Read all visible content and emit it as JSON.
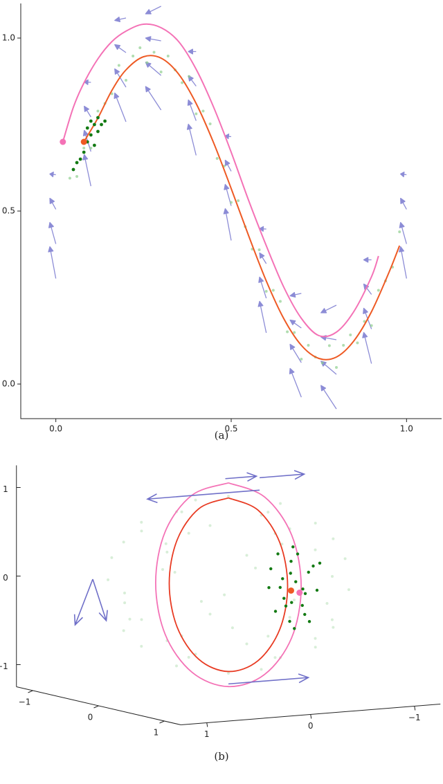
{
  "chart_data": [
    {
      "type": "quiver",
      "caption": "(a)",
      "xlim": [
        -0.1,
        1.1
      ],
      "ylim": [
        -0.1,
        1.1
      ],
      "xticks": [
        {
          "value": 0,
          "label": "0.0"
        },
        {
          "value": 0.5,
          "label": "0.5"
        },
        {
          "value": 1,
          "label": "1.0"
        }
      ],
      "yticks": [
        {
          "value": 0,
          "label": "0.0"
        },
        {
          "value": 0.5,
          "label": "0.5"
        },
        {
          "value": 1,
          "label": "1.0"
        }
      ],
      "quiver": {
        "color": "#8c8cd6",
        "x": [
          0,
          0,
          0,
          0,
          0.1,
          0.1,
          0.1,
          0.1,
          0.2,
          0.2,
          0.2,
          0.2,
          0.3,
          0.3,
          0.3,
          0.3,
          0.4,
          0.4,
          0.4,
          0.4,
          0.5,
          0.5,
          0.5,
          0.5,
          0.6,
          0.6,
          0.6,
          0.6,
          0.7,
          0.7,
          0.7,
          0.7,
          0.8,
          0.8,
          0.8,
          0.8,
          0.9,
          0.9,
          0.9,
          0.9,
          1,
          1,
          1,
          1
        ],
        "y": [
          0.305,
          0.405,
          0.505,
          0.605,
          0.572,
          0.672,
          0.772,
          0.872,
          0.758,
          0.858,
          0.958,
          1.058,
          0.792,
          0.892,
          0.992,
          1.092,
          0.661,
          0.761,
          0.861,
          0.961,
          0.415,
          0.515,
          0.615,
          0.715,
          0.148,
          0.248,
          0.348,
          0.448,
          -0.038,
          0.062,
          0.162,
          0.262,
          -0.072,
          0.028,
          0.128,
          0.228,
          0.059,
          0.159,
          0.259,
          0.359,
          0.305,
          0.405,
          0.505,
          0.605
        ],
        "u": [
          -0.017,
          -0.017,
          -0.017,
          -0.017,
          -0.019,
          -0.019,
          -0.019,
          -0.019,
          -0.032,
          -0.032,
          -0.032,
          -0.032,
          -0.044,
          -0.044,
          -0.044,
          -0.044,
          -0.022,
          -0.022,
          -0.022,
          -0.022,
          -0.017,
          -0.017,
          -0.017,
          -0.017,
          -0.019,
          -0.019,
          -0.019,
          -0.019,
          -0.032,
          -0.032,
          -0.032,
          -0.032,
          -0.044,
          -0.044,
          -0.044,
          -0.044,
          -0.022,
          -0.022,
          -0.022,
          -0.022,
          -0.017,
          -0.017,
          -0.017,
          -0.017
        ],
        "v": [
          0.092,
          0.062,
          0.032,
          0.002,
          0.091,
          0.061,
          0.031,
          0.001,
          0.083,
          0.053,
          0.023,
          -0.007,
          0.068,
          0.038,
          0.008,
          -0.022,
          0.09,
          0.06,
          0.03,
          0,
          0.092,
          0.062,
          0.032,
          0.002,
          0.091,
          0.061,
          0.031,
          0.001,
          0.083,
          0.053,
          0.023,
          -0.007,
          0.068,
          0.038,
          0.008,
          -0.022,
          0.09,
          0.06,
          0.03,
          0,
          0.092,
          0.062,
          0.032,
          0.002
        ]
      },
      "scatter": [
        {
          "color": "#8fcf8f",
          "alpha": 0.7,
          "size": 2,
          "x": [
            0.04,
            0.06,
            0.08,
            0.1,
            0.12,
            0.14,
            0.16,
            0.18,
            0.2,
            0.22,
            0.24,
            0.26,
            0.28,
            0.3,
            0.32,
            0.34,
            0.36,
            0.38,
            0.4,
            0.42,
            0.44,
            0.46,
            0.48,
            0.5,
            0.52,
            0.54,
            0.56,
            0.58,
            0.6,
            0.62,
            0.64,
            0.66,
            0.68,
            0.7,
            0.72,
            0.74,
            0.76,
            0.78,
            0.8,
            0.82,
            0.84,
            0.86,
            0.88,
            0.9,
            0.92,
            0.94,
            0.96,
            0.98
          ],
          "y": [
            0.595,
            0.6,
            0.682,
            0.682,
            0.789,
            0.811,
            0.839,
            0.921,
            0.878,
            0.948,
            0.972,
            0.929,
            0.959,
            0.902,
            0.948,
            0.908,
            0.871,
            0.889,
            0.781,
            0.789,
            0.752,
            0.652,
            0.63,
            0.525,
            0.53,
            0.455,
            0.39,
            0.388,
            0.268,
            0.271,
            0.239,
            0.151,
            0.149,
            0.072,
            0.112,
            0.078,
            0.061,
            0.111,
            0.048,
            0.112,
            0.142,
            0.119,
            0.181,
            0.169,
            0.271,
            0.298,
            0.338,
            0.44
          ]
        },
        {
          "color": "#137a13",
          "alpha": 1,
          "size": 2.4,
          "x": [
            0.05,
            0.06,
            0.07,
            0.08,
            0.09,
            0.09,
            0.1,
            0.1,
            0.11,
            0.11,
            0.12,
            0.12,
            0.13,
            0.14
          ],
          "y": [
            0.62,
            0.64,
            0.65,
            0.67,
            0.7,
            0.74,
            0.72,
            0.76,
            0.69,
            0.75,
            0.73,
            0.77,
            0.75,
            0.76
          ]
        }
      ],
      "curves": [
        {
          "color": "#f472b6",
          "x": [
            0.02,
            0.05,
            0.08,
            0.12,
            0.16,
            0.2,
            0.25,
            0.3,
            0.35,
            0.4,
            0.45,
            0.5,
            0.55,
            0.6,
            0.65,
            0.7,
            0.75,
            0.8,
            0.85,
            0.9,
            0.92
          ],
          "y": [
            0.7,
            0.8,
            0.87,
            0.94,
            0.99,
            1.02,
            1.04,
            1.03,
            0.99,
            0.91,
            0.8,
            0.67,
            0.53,
            0.4,
            0.28,
            0.19,
            0.14,
            0.15,
            0.21,
            0.31,
            0.37
          ]
        },
        {
          "color": "#ee5a24",
          "x": [
            0.08,
            0.12,
            0.16,
            0.2,
            0.25,
            0.3,
            0.35,
            0.4,
            0.45,
            0.5,
            0.55,
            0.6,
            0.65,
            0.7,
            0.75,
            0.8,
            0.85,
            0.9,
            0.95,
            0.98
          ],
          "y": [
            0.7,
            0.769,
            0.849,
            0.908,
            0.946,
            0.942,
            0.896,
            0.811,
            0.697,
            0.565,
            0.428,
            0.298,
            0.189,
            0.112,
            0.074,
            0.078,
            0.125,
            0.209,
            0.323,
            0.4
          ]
        }
      ],
      "markers": [
        {
          "color": "#f472b6",
          "x": [
            0.02
          ],
          "y": [
            0.7
          ]
        },
        {
          "color": "#ee5a24",
          "x": [
            0.08
          ],
          "y": [
            0.7
          ]
        }
      ]
    },
    {
      "type": "scatter3d",
      "caption": "(b)",
      "xlim": [
        -1.25,
        1.25
      ],
      "ylim": [
        -1.25,
        1.25
      ],
      "zlim": [
        -1.25,
        1.25
      ],
      "xticks": [
        {
          "value": -1,
          "label": "−1"
        },
        0,
        1
      ],
      "yticks": [
        1,
        0,
        {
          "value": -1,
          "label": "−1"
        }
      ],
      "zticks": [
        1,
        0,
        {
          "value": -1,
          "label": "−1"
        }
      ],
      "scatter": [
        {
          "color": "#8fcf8f",
          "alpha": 0.35,
          "size": 2,
          "x": [
            1,
            0.71,
            0,
            -0.71,
            -1,
            -0.71,
            0,
            0.71,
            0.8,
            0.33,
            -0.33,
            -0.8,
            -0.8,
            -0.33,
            0.33,
            0.8,
            0.8,
            0.33,
            -0.33,
            -0.8,
            -0.8,
            -0.33,
            0.33,
            0.8,
            0.5,
            0,
            -0.5,
            0,
            0.5,
            0,
            -0.5,
            0,
            0.95,
            0.48,
            -0.48,
            -0.95,
            -0.48,
            0.48,
            0.82,
            0,
            -0.82,
            -0.82,
            0,
            0.82,
            0,
            0,
            0.71,
            0.36,
            -0.36,
            -0.71,
            -0.36,
            0.36,
            0.71,
            0.36,
            -0.36,
            -0.71,
            -0.36,
            0.36
          ],
          "y": [
            0,
            0.71,
            1,
            0.71,
            0,
            -0.71,
            -1,
            -0.71,
            0.33,
            0.8,
            0.8,
            0.33,
            -0.33,
            -0.8,
            -0.8,
            -0.33,
            0.33,
            0.8,
            0.8,
            0.33,
            -0.33,
            -0.8,
            -0.8,
            -0.33,
            0,
            0.5,
            0,
            -0.5,
            0,
            0.5,
            0,
            -0.5,
            0,
            0.82,
            0.82,
            0,
            -0.82,
            -0.82,
            0.48,
            0.95,
            0.48,
            -0.48,
            -0.95,
            -0.48,
            0,
            0,
            0,
            0.61,
            0.61,
            0,
            -0.61,
            -0.61,
            0,
            0.61,
            0.61,
            0,
            -0.61,
            -0.61
          ],
          "z": [
            0,
            0,
            0,
            0,
            0,
            0,
            0,
            0,
            0.5,
            0.5,
            0.5,
            0.5,
            0.5,
            0.5,
            0.5,
            0.5,
            -0.5,
            -0.5,
            -0.5,
            -0.5,
            -0.5,
            -0.5,
            -0.5,
            -0.5,
            0.87,
            0.87,
            0.87,
            0.87,
            -0.87,
            -0.87,
            -0.87,
            -0.87,
            0.3,
            0.3,
            0.3,
            0.3,
            0.3,
            0.3,
            -0.3,
            -0.3,
            -0.3,
            -0.3,
            -0.3,
            -0.3,
            1,
            -1,
            0.7,
            0.7,
            0.7,
            0.7,
            0.7,
            0.7,
            -0.7,
            -0.7,
            -0.7,
            -0.7,
            -0.7,
            -0.7
          ]
        },
        {
          "color": "#137a13",
          "alpha": 1,
          "size": 2.2,
          "x": [
            0.4,
            0.55,
            0.25,
            0.5,
            0.3,
            0.6,
            0.35,
            0.45,
            0.2,
            0.55,
            0.4,
            0.3,
            0.5,
            0.65,
            0.25,
            0.45,
            0.35,
            0.6,
            0.4,
            0.5,
            0.3,
            0.55,
            0.45,
            0.35,
            0.4
          ],
          "y": [
            -0.35,
            -0.3,
            -0.45,
            -0.5,
            -0.2,
            -0.4,
            -0.55,
            -0.25,
            -0.35,
            -0.15,
            -0.6,
            -0.4,
            -0.35,
            -0.3,
            -0.25,
            -0.45,
            -0.3,
            -0.5,
            -0.2,
            -0.4,
            -0.55,
            -0.25,
            -0.35,
            -0.4,
            -0.3
          ],
          "z": [
            0.3,
            0.1,
            -0.2,
            0.25,
            0,
            -0.35,
            0.15,
            -0.1,
            0.35,
            0.05,
            -0.05,
            -0.4,
            0.4,
            -0.15,
            0.2,
            -0.3,
            0.1,
            0.3,
            -0.25,
            0,
            -0.1,
            0.2,
            -0.45,
            0.45,
            -0.2
          ]
        }
      ],
      "curves": [
        {
          "color": "#f472b6",
          "x": [
            0,
            0.19,
            0.33,
            0.38,
            0.33,
            0.19,
            0,
            -0.19,
            -0.33,
            -0.38,
            -0.33,
            -0.19,
            0
          ],
          "y": [
            0,
            -0.23,
            -0.4,
            -0.46,
            -0.4,
            -0.23,
            0,
            0.23,
            0.4,
            0.46,
            0.4,
            0.23,
            0
          ],
          "z": [
            1.15,
            1,
            0.58,
            0,
            -0.58,
            -1,
            -1.15,
            -1,
            -0.58,
            0,
            0.58,
            1,
            1.15
          ]
        },
        {
          "color": "#e83a22",
          "x": [
            0,
            0.15,
            0.26,
            0.3,
            0.26,
            0.15,
            0,
            -0.15,
            -0.26,
            -0.3,
            -0.26,
            -0.15,
            0
          ],
          "y": [
            0,
            -0.19,
            -0.33,
            -0.38,
            -0.33,
            -0.19,
            0,
            0.19,
            0.33,
            0.38,
            0.33,
            0.19,
            0
          ],
          "z": [
            0.98,
            0.85,
            0.49,
            0,
            -0.49,
            -0.85,
            -0.98,
            -0.85,
            -0.49,
            0,
            0.49,
            0.85,
            0.98
          ]
        }
      ],
      "quiver": {
        "color": "#6f6fc8",
        "x": [
          0,
          0,
          0,
          0,
          -0.8,
          -0.8
        ],
        "y": [
          0.03,
          -0.3,
          -0.3,
          0,
          0.8,
          0.8
        ],
        "z": [
          1.2,
          1.18,
          1.04,
          -1.12,
          0,
          0
        ],
        "u": [
          0,
          0,
          0,
          0,
          0,
          0
        ],
        "v": [
          -0.3,
          -0.43,
          1.08,
          -0.77,
          0.17,
          -0.13
        ],
        "w": [
          0,
          0,
          0,
          0,
          -0.5,
          -0.48
        ]
      },
      "markers": [
        {
          "color": "#ee5a24",
          "x": [
            0.4
          ],
          "y": [
            -0.35
          ],
          "z": [
            -0.03
          ]
        },
        {
          "color": "#f472b6",
          "x": [
            0.45
          ],
          "y": [
            -0.4
          ],
          "z": [
            -0.05
          ]
        }
      ]
    }
  ]
}
